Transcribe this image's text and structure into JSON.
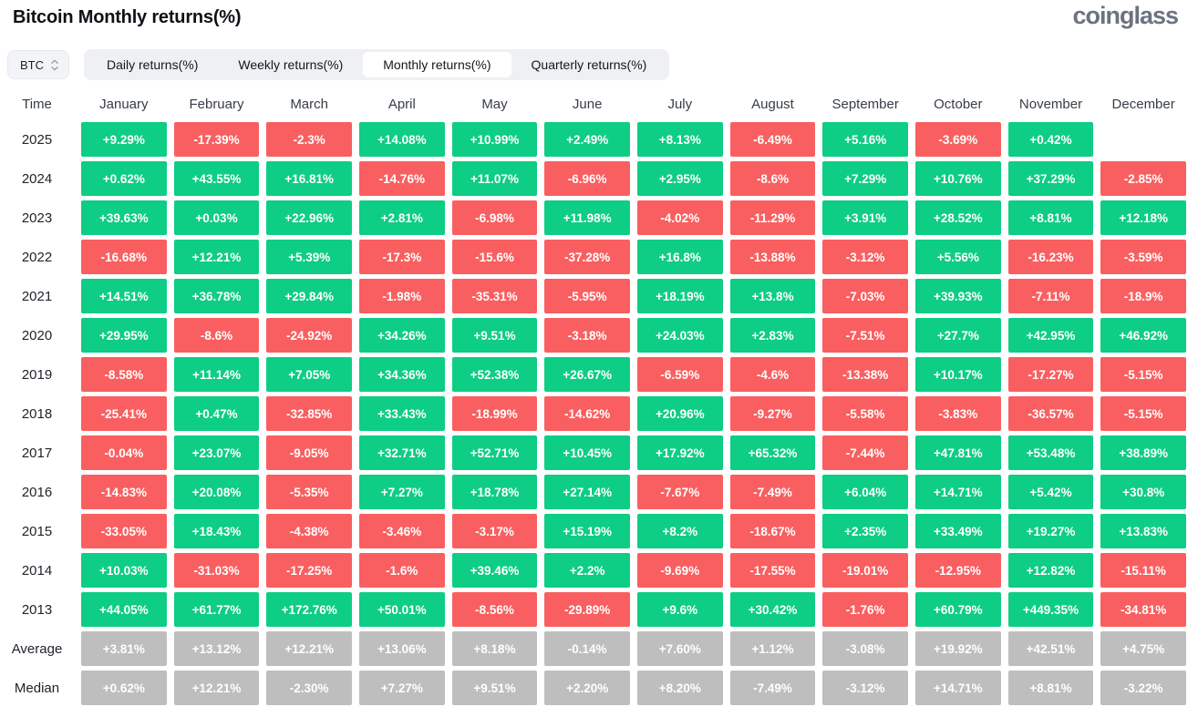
{
  "header": {
    "title": "Bitcoin Monthly returns(%)",
    "logo_text": "coinglass"
  },
  "controls": {
    "symbol": "BTC",
    "tabs": [
      "Daily returns(%)",
      "Weekly returns(%)",
      "Monthly returns(%)",
      "Quarterly returns(%)"
    ],
    "active_tab": "Monthly returns(%)"
  },
  "colors": {
    "positive": "#0ecd84",
    "negative": "#f95f60",
    "summary": "#bebebe"
  },
  "chart_data": {
    "type": "heatmap",
    "title": "Bitcoin Monthly returns(%)",
    "time_column_label": "Time",
    "columns": [
      "January",
      "February",
      "March",
      "April",
      "May",
      "June",
      "July",
      "August",
      "September",
      "October",
      "November",
      "December"
    ],
    "rows": [
      {
        "label": "2025",
        "summary": false,
        "values": [
          "+9.29%",
          "-17.39%",
          "-2.3%",
          "+14.08%",
          "+10.99%",
          "+2.49%",
          "+8.13%",
          "-6.49%",
          "+5.16%",
          "-3.69%",
          "+0.42%",
          null
        ]
      },
      {
        "label": "2024",
        "summary": false,
        "values": [
          "+0.62%",
          "+43.55%",
          "+16.81%",
          "-14.76%",
          "+11.07%",
          "-6.96%",
          "+2.95%",
          "-8.6%",
          "+7.29%",
          "+10.76%",
          "+37.29%",
          "-2.85%"
        ]
      },
      {
        "label": "2023",
        "summary": false,
        "values": [
          "+39.63%",
          "+0.03%",
          "+22.96%",
          "+2.81%",
          "-6.98%",
          "+11.98%",
          "-4.02%",
          "-11.29%",
          "+3.91%",
          "+28.52%",
          "+8.81%",
          "+12.18%"
        ]
      },
      {
        "label": "2022",
        "summary": false,
        "values": [
          "-16.68%",
          "+12.21%",
          "+5.39%",
          "-17.3%",
          "-15.6%",
          "-37.28%",
          "+16.8%",
          "-13.88%",
          "-3.12%",
          "+5.56%",
          "-16.23%",
          "-3.59%"
        ]
      },
      {
        "label": "2021",
        "summary": false,
        "values": [
          "+14.51%",
          "+36.78%",
          "+29.84%",
          "-1.98%",
          "-35.31%",
          "-5.95%",
          "+18.19%",
          "+13.8%",
          "-7.03%",
          "+39.93%",
          "-7.11%",
          "-18.9%"
        ]
      },
      {
        "label": "2020",
        "summary": false,
        "values": [
          "+29.95%",
          "-8.6%",
          "-24.92%",
          "+34.26%",
          "+9.51%",
          "-3.18%",
          "+24.03%",
          "+2.83%",
          "-7.51%",
          "+27.7%",
          "+42.95%",
          "+46.92%"
        ]
      },
      {
        "label": "2019",
        "summary": false,
        "values": [
          "-8.58%",
          "+11.14%",
          "+7.05%",
          "+34.36%",
          "+52.38%",
          "+26.67%",
          "-6.59%",
          "-4.6%",
          "-13.38%",
          "+10.17%",
          "-17.27%",
          "-5.15%"
        ]
      },
      {
        "label": "2018",
        "summary": false,
        "values": [
          "-25.41%",
          "+0.47%",
          "-32.85%",
          "+33.43%",
          "-18.99%",
          "-14.62%",
          "+20.96%",
          "-9.27%",
          "-5.58%",
          "-3.83%",
          "-36.57%",
          "-5.15%"
        ]
      },
      {
        "label": "2017",
        "summary": false,
        "values": [
          "-0.04%",
          "+23.07%",
          "-9.05%",
          "+32.71%",
          "+52.71%",
          "+10.45%",
          "+17.92%",
          "+65.32%",
          "-7.44%",
          "+47.81%",
          "+53.48%",
          "+38.89%"
        ]
      },
      {
        "label": "2016",
        "summary": false,
        "values": [
          "-14.83%",
          "+20.08%",
          "-5.35%",
          "+7.27%",
          "+18.78%",
          "+27.14%",
          "-7.67%",
          "-7.49%",
          "+6.04%",
          "+14.71%",
          "+5.42%",
          "+30.8%"
        ]
      },
      {
        "label": "2015",
        "summary": false,
        "values": [
          "-33.05%",
          "+18.43%",
          "-4.38%",
          "-3.46%",
          "-3.17%",
          "+15.19%",
          "+8.2%",
          "-18.67%",
          "+2.35%",
          "+33.49%",
          "+19.27%",
          "+13.83%"
        ]
      },
      {
        "label": "2014",
        "summary": false,
        "values": [
          "+10.03%",
          "-31.03%",
          "-17.25%",
          "-1.6%",
          "+39.46%",
          "+2.2%",
          "-9.69%",
          "-17.55%",
          "-19.01%",
          "-12.95%",
          "+12.82%",
          "-15.11%"
        ]
      },
      {
        "label": "2013",
        "summary": false,
        "values": [
          "+44.05%",
          "+61.77%",
          "+172.76%",
          "+50.01%",
          "-8.56%",
          "-29.89%",
          "+9.6%",
          "+30.42%",
          "-1.76%",
          "+60.79%",
          "+449.35%",
          "-34.81%"
        ]
      },
      {
        "label": "Average",
        "summary": true,
        "values": [
          "+3.81%",
          "+13.12%",
          "+12.21%",
          "+13.06%",
          "+8.18%",
          "-0.14%",
          "+7.60%",
          "+1.12%",
          "-3.08%",
          "+19.92%",
          "+42.51%",
          "+4.75%"
        ]
      },
      {
        "label": "Median",
        "summary": true,
        "values": [
          "+0.62%",
          "+12.21%",
          "-2.30%",
          "+7.27%",
          "+9.51%",
          "+2.20%",
          "+8.20%",
          "-7.49%",
          "-3.12%",
          "+14.71%",
          "+8.81%",
          "-3.22%"
        ]
      }
    ]
  }
}
